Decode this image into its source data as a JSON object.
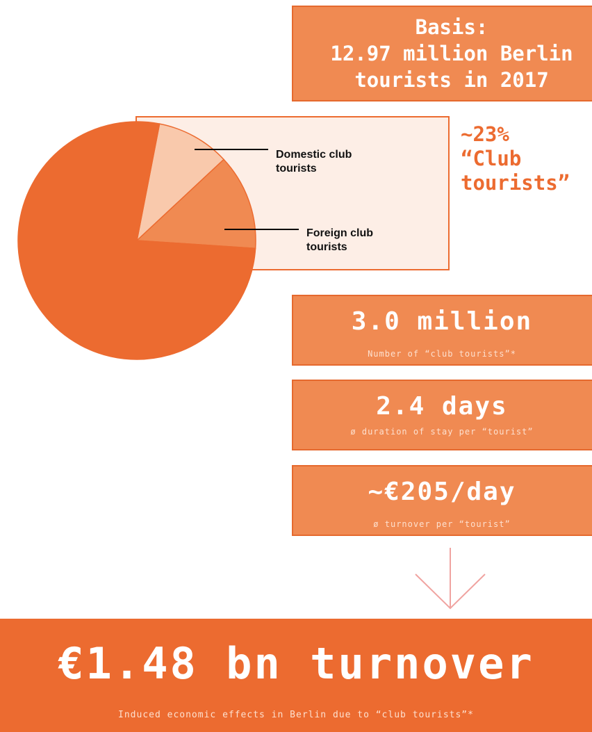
{
  "basis": {
    "lines": [
      "Basis:",
      "12.97 million Berlin",
      "tourists in 2017"
    ]
  },
  "club_share": {
    "lines": [
      "~23%",
      "“Club",
      "tourists”"
    ]
  },
  "chart_data": {
    "type": "pie",
    "categories": [
      "Domestic club tourists",
      "Foreign club tourists",
      null
    ],
    "values": [
      10,
      13,
      77
    ],
    "colors": [
      "#f9c9ac",
      "#f08a52",
      "#ec6b30"
    ]
  },
  "stats": [
    {
      "value": "3.0 million",
      "label": "Number of “club tourists”*"
    },
    {
      "value": "2.4 days",
      "label": "ø duration of stay per “tourist”"
    },
    {
      "value": "~€205/day",
      "label": "ø turnover per “tourist”"
    }
  ],
  "result": {
    "headline": "€1.48 bn turnover",
    "caption": "Induced economic effects in Berlin due to “club tourists”*"
  }
}
